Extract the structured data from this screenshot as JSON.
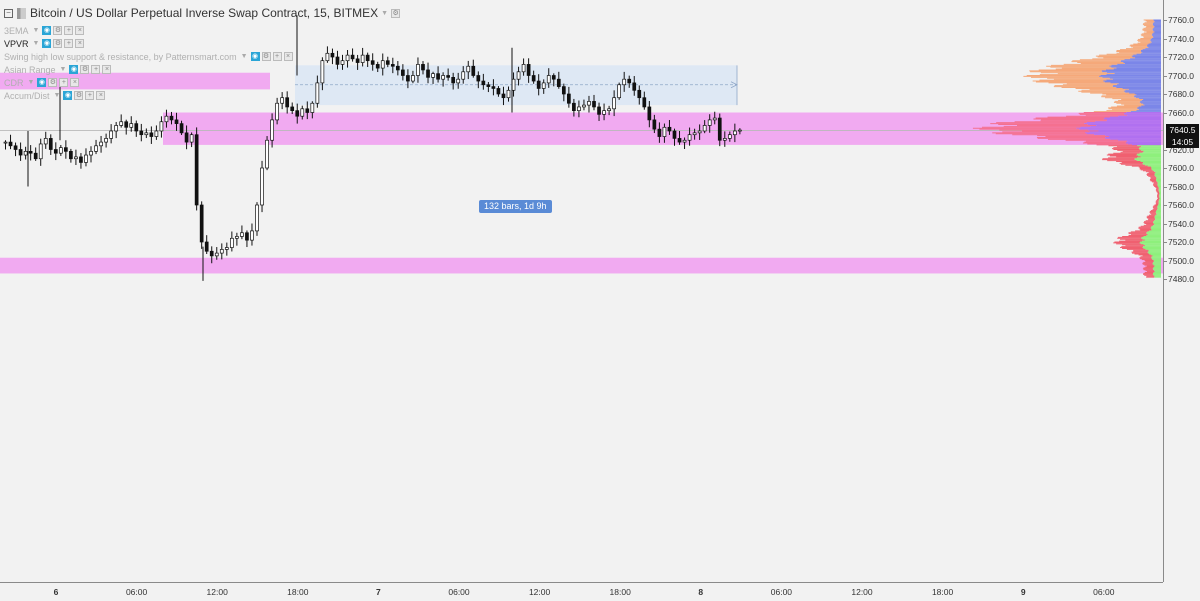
{
  "symbol": {
    "title": "Bitcoin / US Dollar Perpetual Inverse Swap Contract, 15, BITMEX"
  },
  "indicators": [
    {
      "label": "3EMA",
      "active": false
    },
    {
      "label": "VPVR",
      "active": true
    },
    {
      "label": "Swing high low support & resistance, by Patternsmart.com",
      "active": false
    },
    {
      "label": "Asian Range",
      "active": false
    },
    {
      "label": "CDR",
      "active": false
    },
    {
      "label": "Accum/Dist",
      "active": false
    }
  ],
  "price_axis": {
    "ticks": [
      "7760.0",
      "7740.0",
      "7720.0",
      "7700.0",
      "7680.0",
      "7660.0",
      "7620.0",
      "7600.0",
      "7580.0",
      "7560.0",
      "7540.0",
      "7520.0",
      "7500.0",
      "7480.0"
    ],
    "last_price": "7640.5",
    "countdown": "14:05"
  },
  "time_axis": {
    "ticks": [
      {
        "label": "6",
        "bold": true
      },
      {
        "label": "06:00",
        "bold": false
      },
      {
        "label": "12:00",
        "bold": false
      },
      {
        "label": "18:00",
        "bold": false
      },
      {
        "label": "7",
        "bold": true
      },
      {
        "label": "06:00",
        "bold": false
      },
      {
        "label": "12:00",
        "bold": false
      },
      {
        "label": "18:00",
        "bold": false
      },
      {
        "label": "8",
        "bold": true
      },
      {
        "label": "06:00",
        "bold": false
      },
      {
        "label": "12:00",
        "bold": false
      },
      {
        "label": "18:00",
        "bold": false
      },
      {
        "label": "9",
        "bold": true
      },
      {
        "label": "06:00",
        "bold": false
      }
    ]
  },
  "measure": {
    "label": "132 bars, 1d 9h"
  },
  "zones": [
    {
      "from": 7685,
      "to": 7703
    },
    {
      "from": 7625,
      "to": 7660
    },
    {
      "from": 7486,
      "to": 7503
    }
  ],
  "colors": {
    "zone": "#f0a5f0",
    "measure_fill": "#dbe7f4",
    "candle": "#111111",
    "vp_orange": "#f5a97a",
    "vp_blue": "#7b86e8",
    "vp_pink": "#f47090",
    "vp_purple": "#b070f0",
    "vp_green": "#8ef07c"
  },
  "chart_data": {
    "type": "candlestick",
    "ylim": [
      7475,
      7775
    ],
    "close_path": [
      7628,
      7624,
      7620,
      7614,
      7618,
      7616,
      7610,
      7626,
      7632,
      7620,
      7616,
      7622,
      7618,
      7610,
      7612,
      7606,
      7614,
      7618,
      7624,
      7628,
      7632,
      7640,
      7646,
      7650,
      7644,
      7648,
      7640,
      7636,
      7638,
      7634,
      7640,
      7650,
      7656,
      7652,
      7648,
      7638,
      7628,
      7636,
      7560,
      7520,
      7510,
      7505,
      7508,
      7512,
      7514,
      7524,
      7526,
      7530,
      7522,
      7532,
      7560,
      7600,
      7630,
      7652,
      7670,
      7676,
      7666,
      7662,
      7656,
      7664,
      7660,
      7670,
      7692,
      7716,
      7724,
      7720,
      7712,
      7716,
      7722,
      7718,
      7714,
      7722,
      7716,
      7712,
      7708,
      7716,
      7712,
      7710,
      7706,
      7700,
      7694,
      7700,
      7712,
      7706,
      7698,
      7702,
      7696,
      7700,
      7698,
      7692,
      7696,
      7704,
      7710,
      7700,
      7694,
      7690,
      7688,
      7686,
      7680,
      7676,
      7684,
      7696,
      7704,
      7712,
      7700,
      7694,
      7686,
      7692,
      7700,
      7696,
      7688,
      7680,
      7670,
      7662,
      7666,
      7668,
      7672,
      7666,
      7658,
      7662,
      7664,
      7676,
      7690,
      7696,
      7692,
      7684,
      7676,
      7666,
      7652,
      7642,
      7634,
      7644,
      7640,
      7632,
      7628,
      7630,
      7636,
      7638,
      7640,
      7646,
      7652,
      7654,
      7630,
      7632,
      7636,
      7640,
      7641
    ]
  }
}
